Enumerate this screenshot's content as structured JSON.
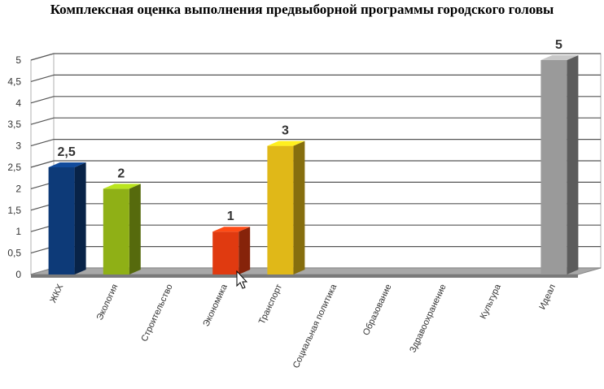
{
  "chart_data": {
    "type": "bar",
    "title": "Комплексная оценка выполнения предвыборной программы городского головы",
    "categories": [
      "ЖКХ",
      "Экология",
      "Строительство",
      "Экономика",
      "Транспорт",
      "Социальная политика",
      "Образование",
      "Здравоохранение",
      "Культура",
      "Идеал"
    ],
    "values": [
      2.5,
      2,
      0,
      1,
      3,
      0,
      0,
      0,
      0,
      5
    ],
    "data_labels": [
      "2,5",
      "2",
      "",
      "1",
      "3",
      "",
      "",
      "",
      "",
      "5"
    ],
    "bar_colors": [
      "#0d3a78",
      "#8fb016",
      "#888888",
      "#e03a10",
      "#e0b818",
      "#888888",
      "#888888",
      "#888888",
      "#888888",
      "#9a9a9a"
    ],
    "ylim": [
      0,
      5
    ],
    "yticks": [
      "0",
      "0,5",
      "1",
      "1,5",
      "2",
      "2,5",
      "3",
      "3,5",
      "4",
      "4,5",
      "5"
    ],
    "xlabel": "",
    "ylabel": "",
    "grid": true,
    "style": "3d-bar"
  }
}
